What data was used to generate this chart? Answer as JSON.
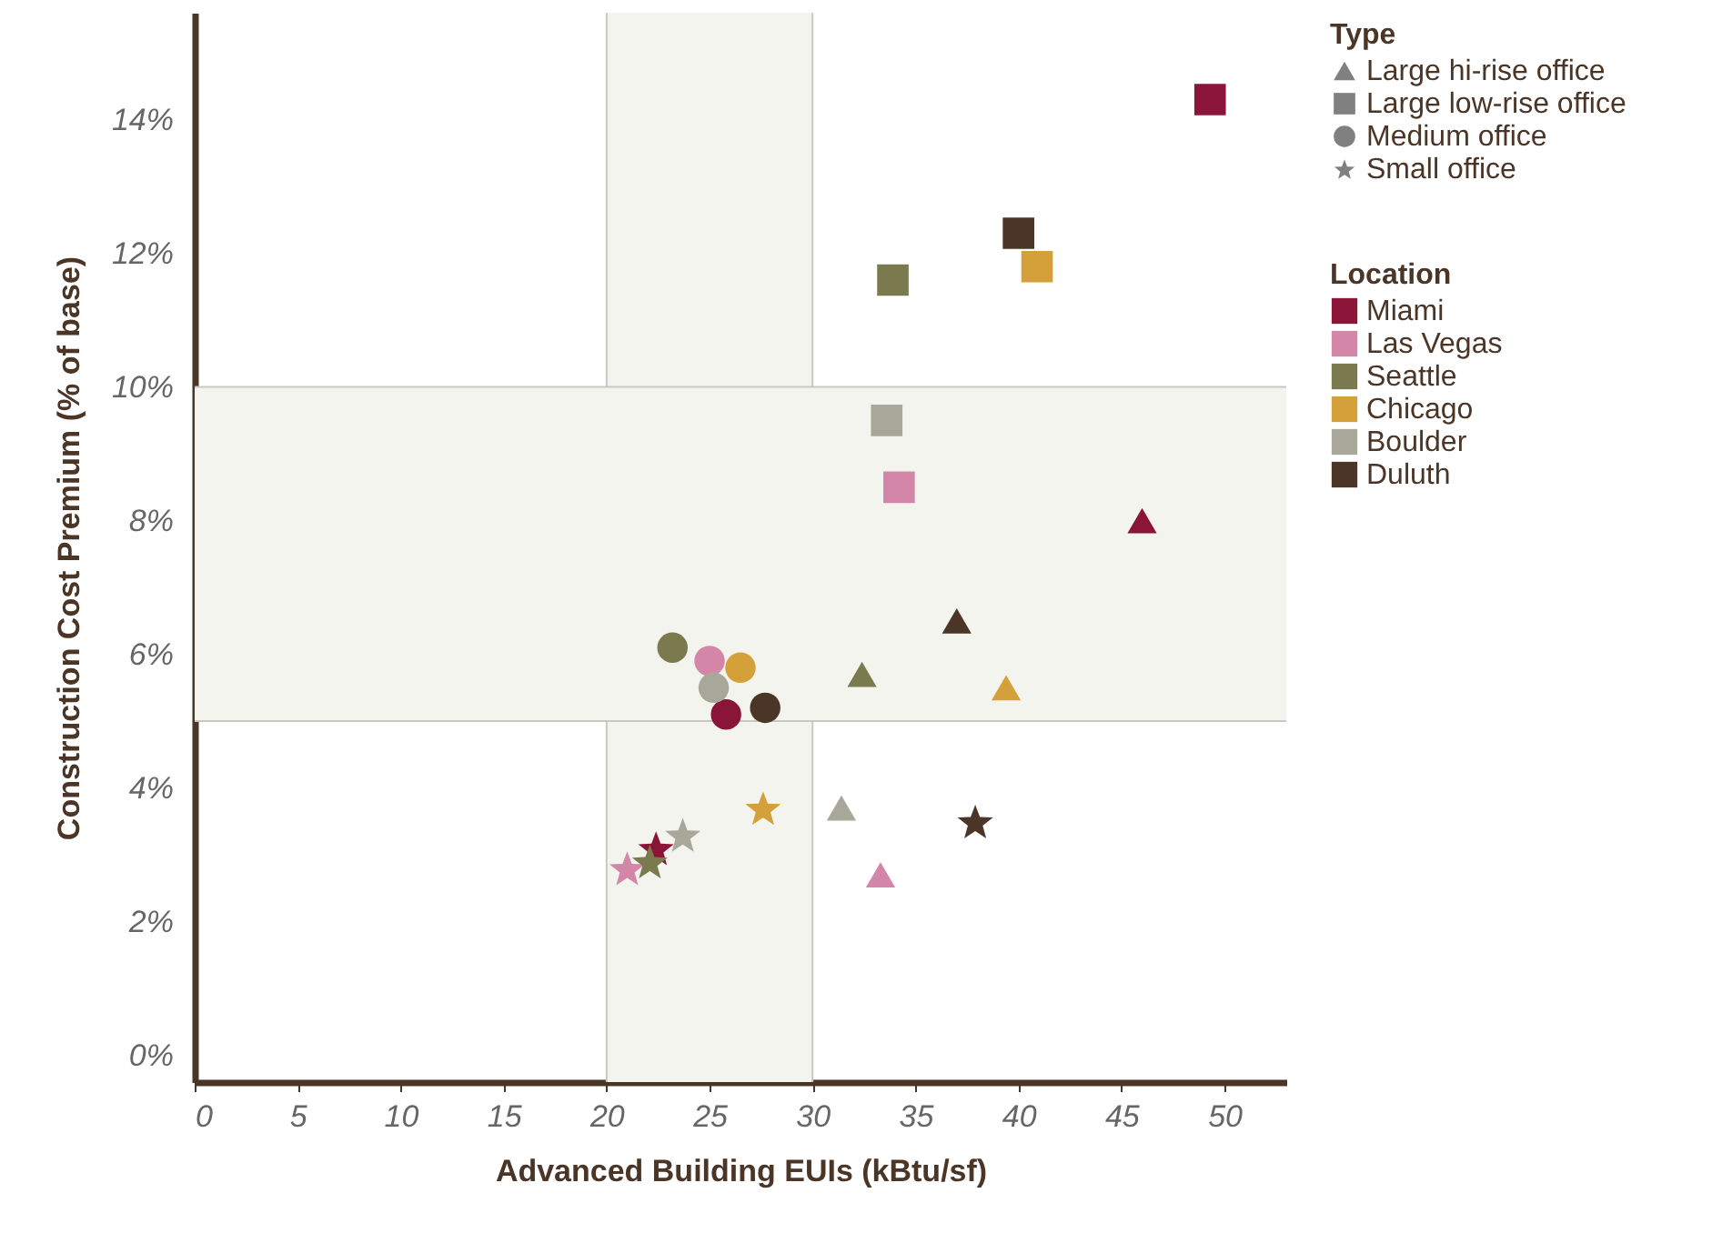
{
  "chart_data": {
    "type": "scatter",
    "xlabel": "Advanced Building EUIs (kBtu/sf)",
    "ylabel": "Construction Cost Premium (% of base)",
    "legend_title": [
      "Type",
      "Location"
    ],
    "annotations": [
      "Large hi-rise office",
      "Large low-rise office",
      "Medium office",
      "Small office"
    ],
    "marker": [
      "triangle",
      "square",
      "circle",
      "star"
    ],
    "series": [
      {
        "name": "Miami",
        "color": "#8b1538",
        "x": [
          46.0,
          49.3,
          25.8,
          22.4
        ],
        "values": [
          8.0,
          14.3,
          5.1,
          3.1
        ]
      },
      {
        "name": "Las Vegas",
        "color": "#d486a8",
        "x": [
          33.3,
          34.2,
          25.0,
          21.0
        ],
        "values": [
          2.7,
          8.5,
          5.9,
          2.8
        ]
      },
      {
        "name": "Seattle",
        "color": "#7a7a4e",
        "x": [
          32.4,
          33.9,
          23.2,
          22.1
        ],
        "values": [
          5.7,
          11.6,
          6.1,
          2.9
        ]
      },
      {
        "name": "Chicago",
        "color": "#d4a03a",
        "x": [
          39.4,
          40.9,
          26.5,
          27.6
        ],
        "values": [
          5.5,
          11.8,
          5.8,
          3.7
        ]
      },
      {
        "name": "Boulder",
        "color": "#a8a89a",
        "x": [
          31.4,
          33.6,
          25.2,
          23.7
        ],
        "values": [
          3.7,
          9.5,
          5.5,
          3.3
        ]
      },
      {
        "name": "Duluth",
        "color": "#4a3526",
        "x": [
          37.0,
          40.0,
          27.7,
          37.9
        ],
        "values": [
          6.5,
          12.3,
          5.2,
          3.5
        ]
      }
    ],
    "xlim": [
      0,
      53
    ],
    "xticks": [
      0,
      5,
      10,
      15,
      20,
      25,
      30,
      35,
      40,
      45,
      50
    ],
    "ylim": [
      -0.4,
      15.6
    ],
    "yticks": [
      {
        "value": 0,
        "label": "0%"
      },
      {
        "value": 2,
        "label": "2%"
      },
      {
        "value": 4,
        "label": "4%"
      },
      {
        "value": 6,
        "label": "6%"
      },
      {
        "value": 8,
        "label": "8%"
      },
      {
        "value": 10,
        "label": "10%"
      },
      {
        "value": 12,
        "label": "12%"
      },
      {
        "value": 14,
        "label": "14%"
      }
    ],
    "bands": [
      {
        "axis": "x",
        "from": 20,
        "to": 30,
        "color": "#f4f4ef"
      },
      {
        "axis": "y",
        "from": 5,
        "to": 10,
        "color": "#f4f4ef"
      }
    ],
    "grid": true,
    "legend": "top right"
  }
}
